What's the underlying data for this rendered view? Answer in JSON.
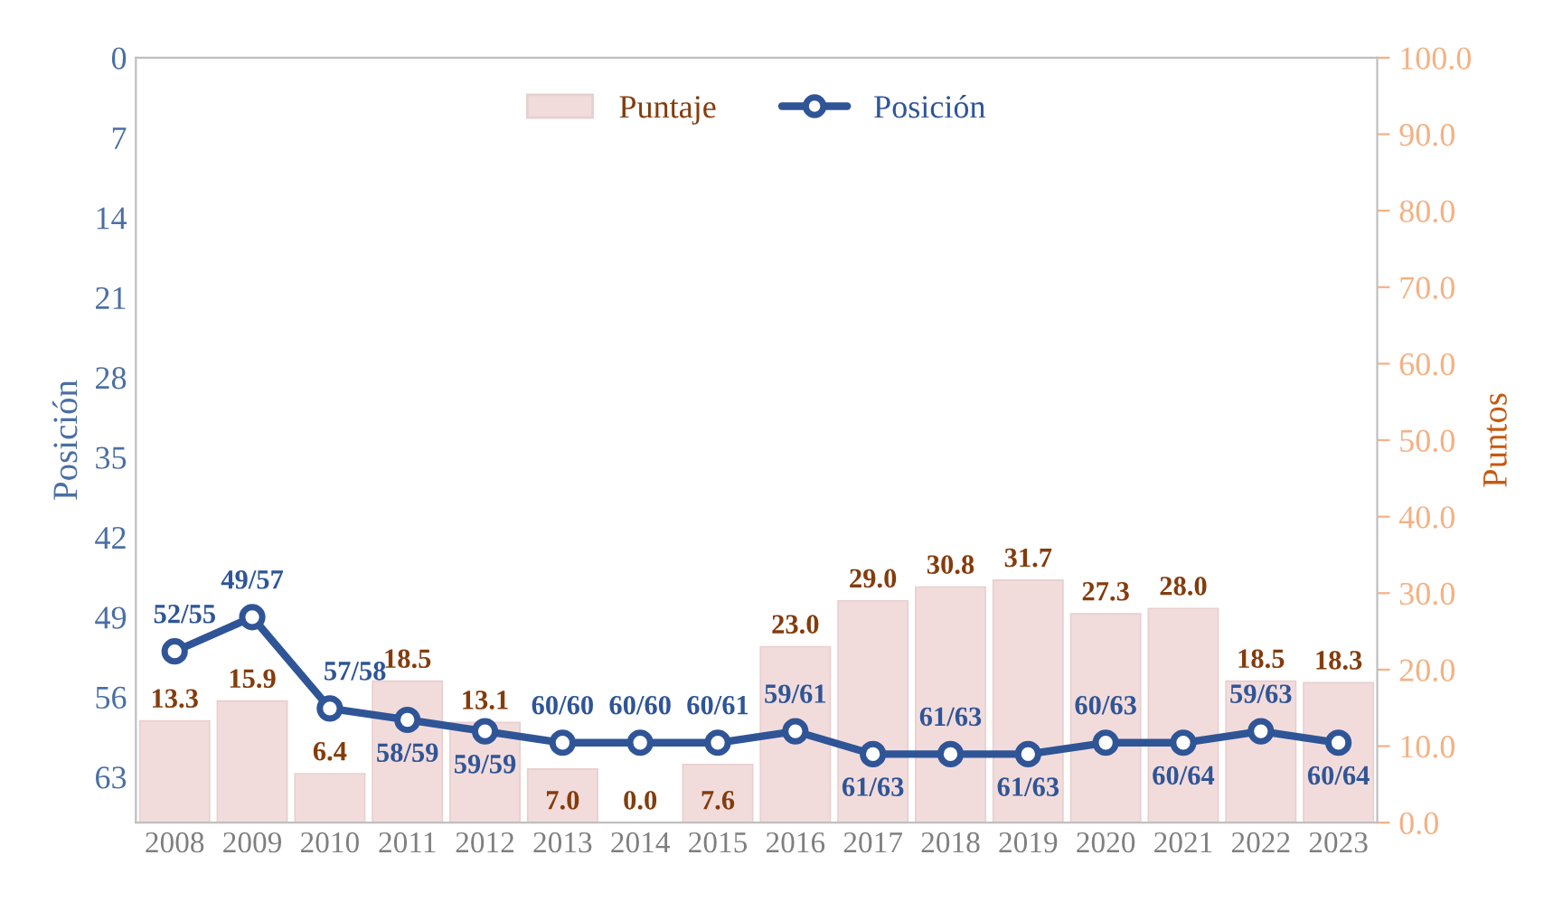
{
  "chart_data": {
    "type": "bar",
    "ylabel": "Posición",
    "y2label": "Puntos",
    "categories": [
      "2008",
      "2009",
      "2010",
      "2011",
      "2012",
      "2013",
      "2014",
      "2015",
      "2016",
      "2017",
      "2018",
      "2019",
      "2020",
      "2021",
      "2022",
      "2023"
    ],
    "series": [
      {
        "name": "Puntaje",
        "axis": "y2",
        "color": "#f2dcdb",
        "values": [
          13.3,
          15.9,
          6.4,
          18.5,
          13.1,
          7.0,
          0.0,
          7.6,
          23.0,
          29.0,
          30.8,
          31.7,
          27.3,
          28.0,
          18.5,
          18.3
        ],
        "value_labels": [
          "13.3",
          "15.9",
          "6.4",
          "18.5",
          "13.1",
          "7.0",
          "0.0",
          "7.6",
          "23.0",
          "29.0",
          "30.8",
          "31.7",
          "27.3",
          "28.0",
          "18.5",
          "18.3"
        ]
      },
      {
        "name": "Posición",
        "type": "line",
        "axis": "y",
        "color": "#2f5597",
        "marker": "circle",
        "values": [
          52,
          49,
          57,
          58,
          59,
          60,
          60,
          60,
          59,
          61,
          61,
          61,
          60,
          60,
          59,
          60
        ],
        "value_labels": [
          "52/55",
          "49/57",
          "57/58",
          "58/59",
          "59/59",
          "60/60",
          "60/60",
          "60/61",
          "59/61",
          "61/63",
          "61/63",
          "61/63",
          "60/63",
          "60/64",
          "59/63",
          "60/64"
        ]
      }
    ],
    "ylim": [
      67,
      0
    ],
    "yticks": [
      0,
      7,
      14,
      21,
      28,
      35,
      42,
      49,
      56,
      63
    ],
    "y2lim": [
      0,
      100
    ],
    "y2ticks": [
      {
        "value": 0,
        "label": "0.0"
      },
      {
        "value": 10,
        "label": "10.0"
      },
      {
        "value": 20,
        "label": "20.0"
      },
      {
        "value": 30,
        "label": "30.0"
      },
      {
        "value": 40,
        "label": "40.0"
      },
      {
        "value": 50,
        "label": "50.0"
      },
      {
        "value": 60,
        "label": "60.0"
      },
      {
        "value": 70,
        "label": "70.0"
      },
      {
        "value": 80,
        "label": "80.0"
      },
      {
        "value": 90,
        "label": "90.0"
      },
      {
        "value": 100,
        "label": "100.0"
      }
    ],
    "legend": "top",
    "grid": false
  }
}
